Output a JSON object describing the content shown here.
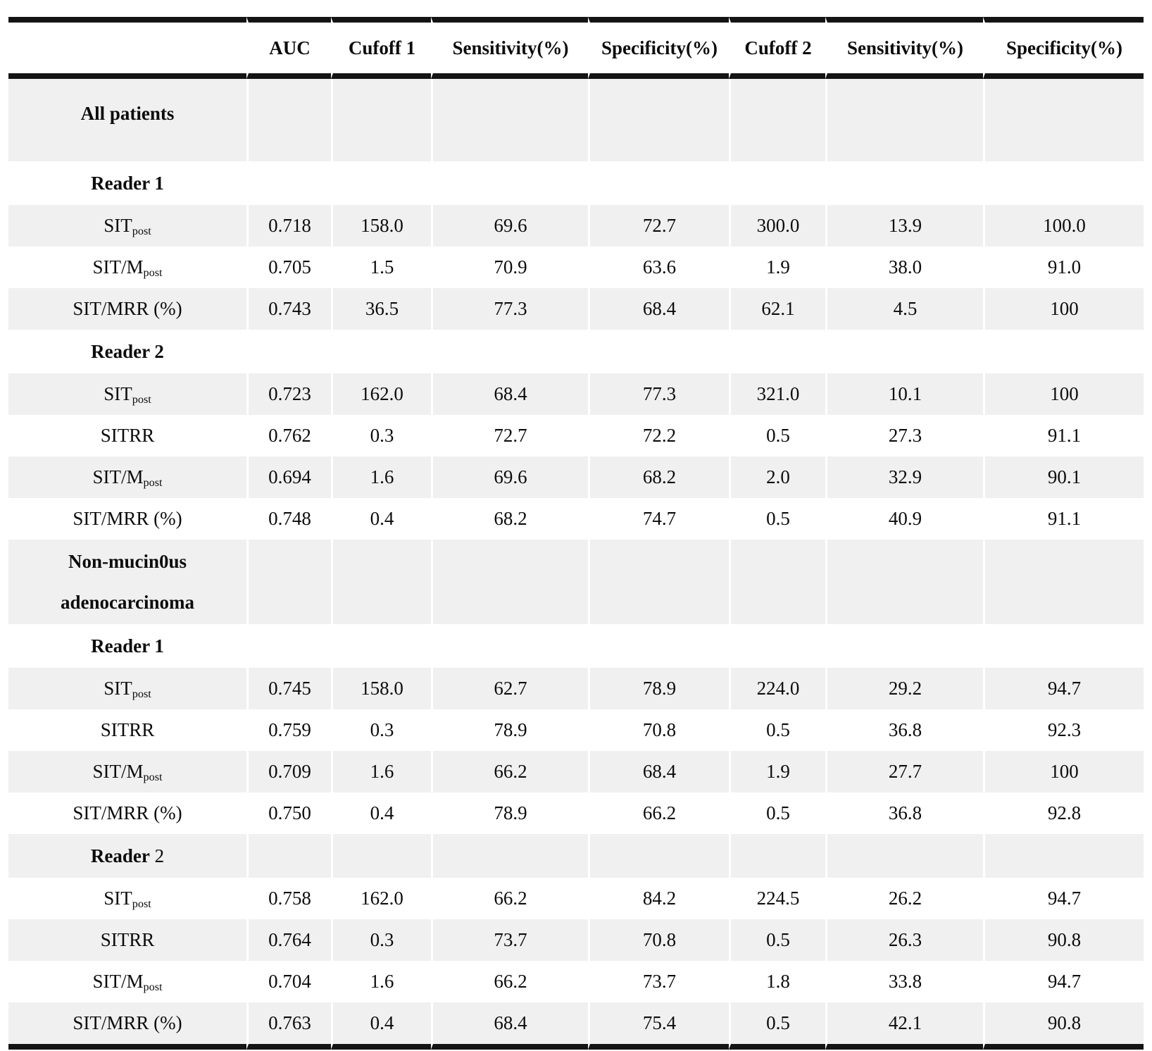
{
  "colors": {
    "row_shade": "#f0f0f0",
    "rule": "#141414",
    "background": "#ffffff",
    "text": "#0c0c0c"
  },
  "table": {
    "columns": [
      {
        "label": ""
      },
      {
        "label": "AUC"
      },
      {
        "label": "Cufoff 1"
      },
      {
        "label": "Sensitivity(%)"
      },
      {
        "label": "Specificity(%)"
      },
      {
        "label": "Cufoff 2"
      },
      {
        "label": "Sensitivity(%)"
      },
      {
        "label": "Specificity(%)"
      }
    ],
    "rows": [
      {
        "type": "section",
        "lines": [
          "All patients"
        ],
        "shade": true
      },
      {
        "type": "subsection",
        "bold": "Reader 1",
        "regular": "",
        "shade": false
      },
      {
        "type": "data",
        "label": {
          "main": "SIT",
          "sub": "post"
        },
        "shade": true,
        "values": [
          "0.718",
          "158.0",
          "69.6",
          "72.7",
          "300.0",
          "13.9",
          "100.0"
        ]
      },
      {
        "type": "data",
        "label": {
          "main": "SIT/M",
          "sub": "post"
        },
        "shade": false,
        "values": [
          "0.705",
          "1.5",
          "70.9",
          "63.6",
          "1.9",
          "38.0",
          "91.0"
        ]
      },
      {
        "type": "data",
        "label": {
          "main": "SIT/MRR (%)",
          "sub": ""
        },
        "shade": true,
        "values": [
          "0.743",
          "36.5",
          "77.3",
          "68.4",
          "62.1",
          "4.5",
          "100"
        ]
      },
      {
        "type": "subsection",
        "bold": "Reader 2",
        "regular": "",
        "shade": false
      },
      {
        "type": "data",
        "label": {
          "main": "SIT",
          "sub": "post"
        },
        "shade": true,
        "values": [
          "0.723",
          "162.0",
          "68.4",
          "77.3",
          "321.0",
          "10.1",
          "100"
        ]
      },
      {
        "type": "data",
        "label": {
          "main": "SITRR",
          "sub": ""
        },
        "shade": false,
        "values": [
          "0.762",
          "0.3",
          "72.7",
          "72.2",
          "0.5",
          "27.3",
          "91.1"
        ]
      },
      {
        "type": "data",
        "label": {
          "main": "SIT/M",
          "sub": "post"
        },
        "shade": true,
        "values": [
          "0.694",
          "1.6",
          "69.6",
          "68.2",
          "2.0",
          "32.9",
          "90.1"
        ]
      },
      {
        "type": "data",
        "label": {
          "main": "SIT/MRR (%)",
          "sub": ""
        },
        "shade": false,
        "values": [
          "0.748",
          "0.4",
          "68.2",
          "74.7",
          "0.5",
          "40.9",
          "91.1"
        ]
      },
      {
        "type": "section",
        "lines": [
          "Non-mucin0us",
          "adenocarcinoma"
        ],
        "shade": true
      },
      {
        "type": "subsection",
        "bold": "Reader 1",
        "regular": "",
        "shade": false
      },
      {
        "type": "data",
        "label": {
          "main": "SIT",
          "sub": "post"
        },
        "shade": true,
        "values": [
          "0.745",
          "158.0",
          "62.7",
          "78.9",
          "224.0",
          "29.2",
          "94.7"
        ]
      },
      {
        "type": "data",
        "label": {
          "main": "SITRR",
          "sub": ""
        },
        "shade": false,
        "values": [
          "0.759",
          "0.3",
          "78.9",
          "70.8",
          "0.5",
          "36.8",
          "92.3"
        ]
      },
      {
        "type": "data",
        "label": {
          "main": "SIT/M",
          "sub": "post"
        },
        "shade": true,
        "values": [
          "0.709",
          "1.6",
          "66.2",
          "68.4",
          "1.9",
          "27.7",
          "100"
        ]
      },
      {
        "type": "data",
        "label": {
          "main": "SIT/MRR (%)",
          "sub": ""
        },
        "shade": false,
        "values": [
          "0.750",
          "0.4",
          "78.9",
          "66.2",
          "0.5",
          "36.8",
          "92.8"
        ]
      },
      {
        "type": "subsection",
        "bold": "Reader",
        "regular": " 2",
        "shade": true
      },
      {
        "type": "data",
        "label": {
          "main": "SIT",
          "sub": "post"
        },
        "shade": false,
        "values": [
          "0.758",
          "162.0",
          "66.2",
          "84.2",
          "224.5",
          "26.2",
          "94.7"
        ]
      },
      {
        "type": "data",
        "label": {
          "main": "SITRR",
          "sub": ""
        },
        "shade": true,
        "values": [
          "0.764",
          "0.3",
          "73.7",
          "70.8",
          "0.5",
          "26.3",
          "90.8"
        ]
      },
      {
        "type": "data",
        "label": {
          "main": "SIT/M",
          "sub": "post"
        },
        "shade": false,
        "values": [
          "0.704",
          "1.6",
          "66.2",
          "73.7",
          "1.8",
          "33.8",
          "94.7"
        ]
      },
      {
        "type": "data",
        "label": {
          "main": "SIT/MRR (%)",
          "sub": ""
        },
        "shade": true,
        "values": [
          "0.763",
          "0.4",
          "68.4",
          "75.4",
          "0.5",
          "42.1",
          "90.8"
        ]
      }
    ]
  }
}
